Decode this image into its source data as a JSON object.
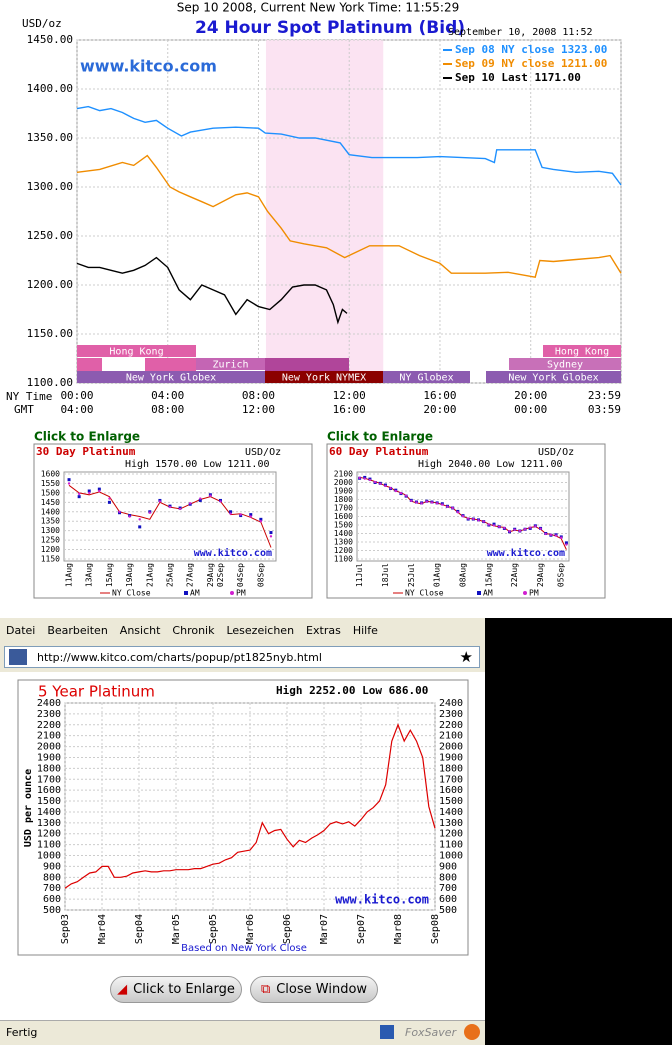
{
  "header": {
    "title": "Sep 10 2008, Current New York Time: 11:55:29"
  },
  "chart_data": [
    {
      "type": "line",
      "title": "24 Hour Spot Platinum (Bid)",
      "timestamp": "September 10, 2008 11:52",
      "watermark": "www.kitco.com",
      "y_label": "USD/oz",
      "x_label": "NY Time",
      "x2_label": "GMT",
      "xlim": [
        0,
        23.98
      ],
      "xticks": [
        {
          "value": 0,
          "label": "00:00"
        },
        {
          "value": 4,
          "label": "04:00"
        },
        {
          "value": 8,
          "label": "08:00"
        },
        {
          "value": 12,
          "label": "12:00"
        },
        {
          "value": 16,
          "label": "16:00"
        },
        {
          "value": 20,
          "label": "20:00"
        },
        {
          "value": 23.98,
          "label": "23:59"
        }
      ],
      "x2ticks": [
        {
          "value": 0,
          "label": "04:00"
        },
        {
          "value": 4,
          "label": "08:00"
        },
        {
          "value": 8,
          "label": "12:00"
        },
        {
          "value": 12,
          "label": "16:00"
        },
        {
          "value": 16,
          "label": "20:00"
        },
        {
          "value": 20,
          "label": "00:00"
        },
        {
          "value": 23.98,
          "label": "03:59"
        }
      ],
      "ylim": [
        1100,
        1450
      ],
      "yticks": [
        {
          "value": 1100,
          "label": "1100.00"
        },
        {
          "value": 1150,
          "label": "1150.00"
        },
        {
          "value": 1200,
          "label": "1200.00"
        },
        {
          "value": 1250,
          "label": "1250.00"
        },
        {
          "value": 1300,
          "label": "1300.00"
        },
        {
          "value": 1350,
          "label": "1350.00"
        },
        {
          "value": 1400,
          "label": "1400.00"
        },
        {
          "value": 1450,
          "label": "1450.00"
        }
      ],
      "grid": true,
      "shaded_region": [
        8.33,
        13.5
      ],
      "series": [
        {
          "name": "Sep 08 NY close 1323.00",
          "color": "#1e90ff",
          "x": [
            0,
            0.5,
            1,
            1.5,
            2,
            2.5,
            3,
            3.5,
            4,
            4.6,
            5,
            6,
            7,
            8,
            8.3,
            9,
            9.8,
            10.5,
            11.6,
            12,
            13,
            14,
            15,
            16,
            17,
            18,
            18.4,
            18.5,
            20.2,
            20.5,
            21,
            22,
            23,
            23.6,
            23.98
          ],
          "values": [
            1380,
            1382,
            1378,
            1380,
            1376,
            1370,
            1366,
            1368,
            1360,
            1352,
            1356,
            1360,
            1361,
            1360,
            1355,
            1354,
            1350,
            1350,
            1345,
            1333,
            1330,
            1330,
            1330,
            1331,
            1330,
            1329,
            1325,
            1338,
            1338,
            1320,
            1318,
            1315,
            1316,
            1314,
            1302
          ]
        },
        {
          "name": "Sep 09 NY close 1211.00",
          "color": "#f08c00",
          "x": [
            0,
            1,
            2,
            2.5,
            3.1,
            3.5,
            4.1,
            4.5,
            5,
            5.5,
            6,
            7,
            7.5,
            8,
            8.4,
            9,
            9.4,
            10,
            11,
            11.8,
            12.9,
            14.2,
            15.1,
            16,
            16.5,
            18,
            19,
            20.2,
            20.4,
            21,
            22,
            23,
            23.5,
            23.98
          ],
          "values": [
            1315,
            1318,
            1325,
            1322,
            1332,
            1320,
            1300,
            1295,
            1290,
            1285,
            1280,
            1292,
            1294,
            1290,
            1275,
            1258,
            1245,
            1242,
            1238,
            1228,
            1240,
            1240,
            1230,
            1222,
            1212,
            1212,
            1213,
            1208,
            1225,
            1224,
            1226,
            1228,
            1230,
            1212
          ]
        },
        {
          "name": "Sep 10 Last 1171.00",
          "color": "#000000",
          "x": [
            0,
            0.5,
            1,
            1.5,
            2,
            2.5,
            3,
            3.5,
            4,
            4.5,
            5,
            5.5,
            6,
            6.5,
            7,
            7.5,
            8,
            8.5,
            9,
            9.5,
            10,
            10.5,
            11,
            11.3,
            11.5,
            11.7,
            11.9
          ],
          "values": [
            1222,
            1218,
            1218,
            1215,
            1212,
            1215,
            1220,
            1228,
            1218,
            1195,
            1185,
            1200,
            1195,
            1190,
            1170,
            1185,
            1178,
            1175,
            1185,
            1198,
            1200,
            1200,
            1195,
            1180,
            1162,
            1175,
            1171
          ]
        }
      ]
    },
    {
      "type": "line",
      "title": "30 Day Platinum",
      "unit": "USD/Oz",
      "subtitle": "High 1570.00 Low 1211.00",
      "watermark": "www.kitco.com",
      "categories": [
        "11Aug",
        null,
        "13Aug",
        null,
        "15Aug",
        null,
        "19Aug",
        null,
        "21Aug",
        null,
        "25Aug",
        null,
        "27Aug",
        null,
        "29Aug",
        "02Sep",
        null,
        "04Sep",
        null,
        "08Sep",
        null
      ],
      "ylim": [
        1150,
        1600
      ],
      "yticks": [
        1150,
        1200,
        1250,
        1300,
        1350,
        1400,
        1450,
        1500,
        1550,
        1600
      ],
      "grid": true,
      "series": [
        {
          "name": "NY Close",
          "color": "#cc0000",
          "values": [
            1540,
            1500,
            1490,
            1505,
            1480,
            1400,
            1385,
            1375,
            1360,
            1450,
            1425,
            1415,
            1440,
            1465,
            1480,
            1455,
            1385,
            1390,
            1370,
            1345,
            1211
          ]
        },
        {
          "name": "AM",
          "color": "#1010c0",
          "values": [
            1570,
            1480,
            1510,
            1520,
            1450,
            1395,
            1380,
            1320,
            1400,
            1460,
            1430,
            1420,
            1440,
            1460,
            1490,
            1460,
            1400,
            1380,
            1385,
            1360,
            1290
          ]
        },
        {
          "name": "PM",
          "color": "#d020d0",
          "values": [
            1550,
            1495,
            1500,
            1510,
            1470,
            1400,
            1375,
            1360,
            1395,
            1455,
            1425,
            1415,
            1445,
            1470,
            1485,
            1455,
            1390,
            1385,
            1375,
            1350,
            1270
          ]
        }
      ]
    },
    {
      "type": "line",
      "title": "60 Day Platinum",
      "unit": "USD/Oz",
      "subtitle": "High 2040.00 Low 1211.00",
      "watermark": "www.kitco.com",
      "categories": [
        "11Jul",
        null,
        null,
        null,
        null,
        "18Jul",
        null,
        null,
        null,
        null,
        "25Jul",
        null,
        null,
        null,
        null,
        "01Aug",
        null,
        null,
        null,
        null,
        "08Aug",
        null,
        null,
        null,
        null,
        "15Aug",
        null,
        null,
        null,
        null,
        "22Aug",
        null,
        null,
        null,
        null,
        "29Aug",
        null,
        null,
        null,
        "05Sep",
        null
      ],
      "ylim": [
        1100,
        2100
      ],
      "yticks": [
        1100,
        1200,
        1300,
        1400,
        1500,
        1600,
        1700,
        1800,
        1900,
        2000,
        2100
      ],
      "grid": true,
      "series": [
        {
          "name": "NY Close",
          "color": "#cc0000",
          "values": [
            2060,
            2050,
            2030,
            2010,
            1990,
            1960,
            1940,
            1900,
            1880,
            1850,
            1780,
            1760,
            1750,
            1780,
            1770,
            1760,
            1740,
            1720,
            1700,
            1650,
            1600,
            1580,
            1570,
            1560,
            1540,
            1510,
            1490,
            1480,
            1470,
            1420,
            1440,
            1430,
            1450,
            1470,
            1480,
            1450,
            1400,
            1390,
            1370,
            1340,
            1211
          ]
        },
        {
          "name": "AM",
          "color": "#1010c0",
          "values": [
            2050,
            2060,
            2040,
            2000,
            1990,
            1970,
            1930,
            1910,
            1870,
            1840,
            1790,
            1770,
            1760,
            1780,
            1770,
            1760,
            1750,
            1720,
            1700,
            1660,
            1610,
            1570,
            1570,
            1560,
            1540,
            1500,
            1510,
            1480,
            1460,
            1420,
            1450,
            1430,
            1450,
            1460,
            1490,
            1460,
            1400,
            1380,
            1385,
            1360,
            1290
          ]
        },
        {
          "name": "PM",
          "color": "#d020d0",
          "values": [
            2055,
            2045,
            2030,
            2005,
            1985,
            1960,
            1935,
            1900,
            1875,
            1845,
            1785,
            1765,
            1755,
            1775,
            1765,
            1755,
            1740,
            1715,
            1700,
            1650,
            1605,
            1575,
            1570,
            1555,
            1540,
            1505,
            1495,
            1480,
            1465,
            1425,
            1445,
            1430,
            1450,
            1470,
            1485,
            1455,
            1395,
            1385,
            1375,
            1350,
            1270
          ]
        }
      ]
    },
    {
      "type": "line",
      "title": "5 Year Platinum",
      "subtitle": "High 2252.00 Low 686.00",
      "y_label": "USD per ounce",
      "watermark": "www.kitco.com",
      "footnote": "Based on New York Close",
      "categories": [
        "Sep03",
        null,
        null,
        null,
        null,
        null,
        "Mar04",
        null,
        null,
        null,
        null,
        null,
        "Sep04",
        null,
        null,
        null,
        null,
        null,
        "Mar05",
        null,
        null,
        null,
        null,
        null,
        "Sep05",
        null,
        null,
        null,
        null,
        null,
        "Mar06",
        null,
        null,
        null,
        null,
        null,
        "Sep06",
        null,
        null,
        null,
        null,
        null,
        "Mar07",
        null,
        null,
        null,
        null,
        null,
        "Sep07",
        null,
        null,
        null,
        null,
        null,
        "Mar08",
        null,
        null,
        null,
        null,
        null,
        "Sep08"
      ],
      "ylim": [
        500,
        2400
      ],
      "yticks": [
        500,
        600,
        700,
        800,
        900,
        1000,
        1100,
        1200,
        1300,
        1400,
        1500,
        1600,
        1700,
        1800,
        1900,
        2000,
        2100,
        2200,
        2300,
        2400
      ],
      "grid": true,
      "series": [
        {
          "name": "NY Close",
          "color": "#dd0000",
          "values": [
            700,
            740,
            760,
            800,
            840,
            850,
            900,
            900,
            800,
            800,
            810,
            840,
            850,
            860,
            850,
            850,
            860,
            860,
            870,
            870,
            870,
            880,
            880,
            900,
            920,
            930,
            960,
            980,
            1030,
            1040,
            1050,
            1120,
            1300,
            1200,
            1230,
            1240,
            1150,
            1080,
            1140,
            1120,
            1160,
            1190,
            1230,
            1290,
            1310,
            1290,
            1310,
            1270,
            1330,
            1400,
            1440,
            1500,
            1650,
            2050,
            2200,
            2050,
            2150,
            2050,
            1900,
            1450,
            1250
          ]
        }
      ]
    }
  ],
  "sessions": [
    "Hong Kong",
    "Zurich",
    "New York Globex",
    "New York NYMEX",
    "NY Globex",
    "Hong Kong",
    "Sydney",
    "New York Globex"
  ],
  "enlarge_links": [
    "Click to Enlarge",
    "Click to Enlarge"
  ],
  "browser": {
    "menu": [
      "Datei",
      "Bearbeiten",
      "Ansicht",
      "Chronik",
      "Lesezeichen",
      "Extras",
      "Hilfe"
    ],
    "url": "http://www.kitco.com/charts/popup/pt1825nyb.html",
    "buttons": [
      "Click to Enlarge",
      "Close Window"
    ],
    "status": "Fertig",
    "addon": "FoxSaver"
  }
}
